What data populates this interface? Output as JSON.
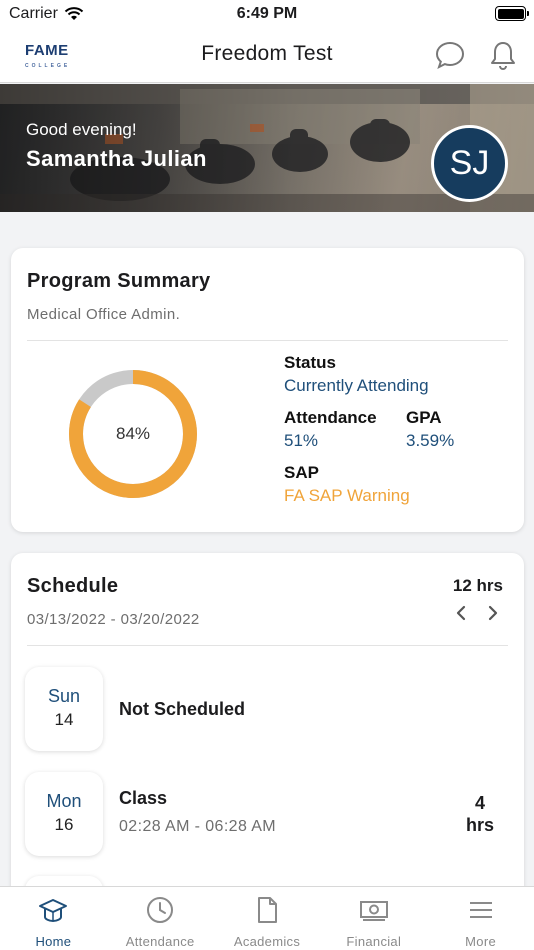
{
  "status_bar": {
    "carrier": "Carrier",
    "time": "6:49 PM"
  },
  "nav": {
    "logo_text": "FAME",
    "logo_sub": "COLLEGE",
    "title": "Freedom Test"
  },
  "hero": {
    "greeting": "Good evening!",
    "name": "Samantha Julian",
    "initials": "SJ"
  },
  "program_summary": {
    "title": "Program Summary",
    "program": "Medical Office Admin.",
    "progress": 0.84,
    "progress_label": "84%",
    "status_label": "Status",
    "status_value": "Currently Attending",
    "attendance_label": "Attendance",
    "attendance_value": "51%",
    "gpa_label": "GPA",
    "gpa_value": "3.59%",
    "sap_label": "SAP",
    "sap_value": "FA SAP Warning"
  },
  "schedule": {
    "title": "Schedule",
    "total_hours": "12 hrs",
    "date_range": "03/13/2022 - 03/20/2022",
    "days": [
      {
        "dow": "Sun",
        "date": "14",
        "event": "Not Scheduled",
        "times": "",
        "hours": ""
      },
      {
        "dow": "Mon",
        "date": "16",
        "event": "Class",
        "times": "02:28 AM - 06:28 AM",
        "hours_num": "4",
        "hours_unit": "hrs"
      }
    ]
  },
  "tabs": [
    {
      "label": "Home",
      "icon": "graduation-cap-icon",
      "active": true
    },
    {
      "label": "Attendance",
      "icon": "clock-icon",
      "active": false
    },
    {
      "label": "Academics",
      "icon": "document-icon",
      "active": false
    },
    {
      "label": "Financial",
      "icon": "money-icon",
      "active": false
    },
    {
      "label": "More",
      "icon": "menu-icon",
      "active": false
    }
  ],
  "colors": {
    "primary": "#1f4f7a",
    "accent": "#f0a43a",
    "avatar_bg": "#163c5e",
    "track": "#c9c9c9"
  }
}
